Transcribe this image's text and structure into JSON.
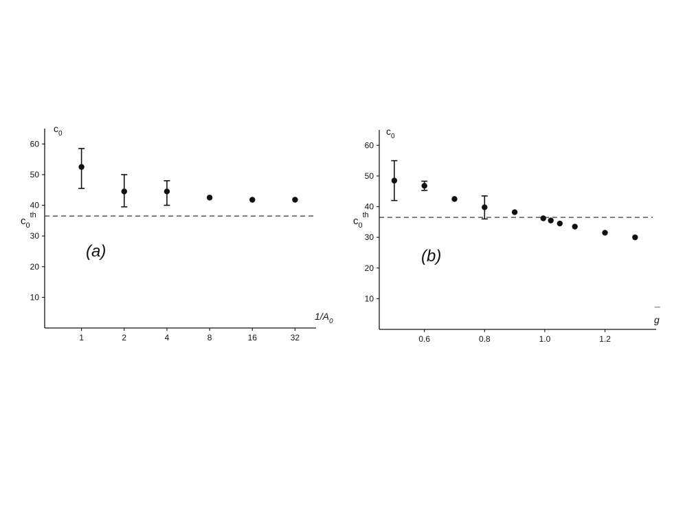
{
  "chart_data": [
    {
      "type": "scatter",
      "panel_label": "(a)",
      "ylabel": "c",
      "ylabel_sub": "0",
      "xlabel": "1/A",
      "xlabel_sub": "0",
      "x_scale": "log2",
      "xticks": [
        1,
        2,
        4,
        8,
        16,
        32
      ],
      "xtick_labels": [
        "1",
        "2",
        "4",
        "8",
        "16",
        "32"
      ],
      "xlim": [
        0.55,
        45
      ],
      "ylim": [
        0,
        65
      ],
      "yticks": [
        10,
        20,
        30,
        40,
        50,
        60
      ],
      "ytick_labels": [
        "10",
        "20",
        "30",
        "40",
        "50",
        "60"
      ],
      "reference_line": {
        "label": "c",
        "label_sub": "0",
        "label_sup": "th",
        "value": 36.5,
        "style": "dashed"
      },
      "points": [
        {
          "x": 1,
          "y": 52.5,
          "err_low": 45.5,
          "err_high": 58.5
        },
        {
          "x": 2,
          "y": 44.5,
          "err_low": 39.5,
          "err_high": 50
        },
        {
          "x": 4,
          "y": 44.5,
          "err_low": 40,
          "err_high": 48
        },
        {
          "x": 8,
          "y": 42.5
        },
        {
          "x": 16,
          "y": 41.8
        },
        {
          "x": 32,
          "y": 41.8
        }
      ]
    },
    {
      "type": "scatter",
      "panel_label": "(b)",
      "ylabel": "c",
      "ylabel_sub": "0",
      "xlabel": "g",
      "xlabel_over": "¯",
      "x_scale": "linear",
      "xticks": [
        0.6,
        0.8,
        1.0,
        1.2
      ],
      "xtick_labels": [
        "0.6",
        "0.8",
        "1.0",
        "1.2"
      ],
      "xlim": [
        0.45,
        1.37
      ],
      "ylim": [
        0,
        65
      ],
      "yticks": [
        10,
        20,
        30,
        40,
        50,
        60
      ],
      "ytick_labels": [
        "10",
        "20",
        "30",
        "40",
        "50",
        "60"
      ],
      "reference_line": {
        "label": "c",
        "label_sub": "0",
        "label_sup": "th",
        "value": 36.5,
        "style": "dashed"
      },
      "points": [
        {
          "x": 0.5,
          "y": 48.5,
          "err_low": 42,
          "err_high": 55
        },
        {
          "x": 0.6,
          "y": 46.8,
          "err_low": 45.3,
          "err_high": 48.3
        },
        {
          "x": 0.7,
          "y": 42.5
        },
        {
          "x": 0.8,
          "y": 39.8,
          "err_low": 36,
          "err_high": 43.5
        },
        {
          "x": 0.9,
          "y": 38.2
        },
        {
          "x": 0.995,
          "y": 36.2
        },
        {
          "x": 1.02,
          "y": 35.5
        },
        {
          "x": 1.05,
          "y": 34.5
        },
        {
          "x": 1.1,
          "y": 33.5
        },
        {
          "x": 1.2,
          "y": 31.5
        },
        {
          "x": 1.3,
          "y": 30
        }
      ]
    }
  ]
}
